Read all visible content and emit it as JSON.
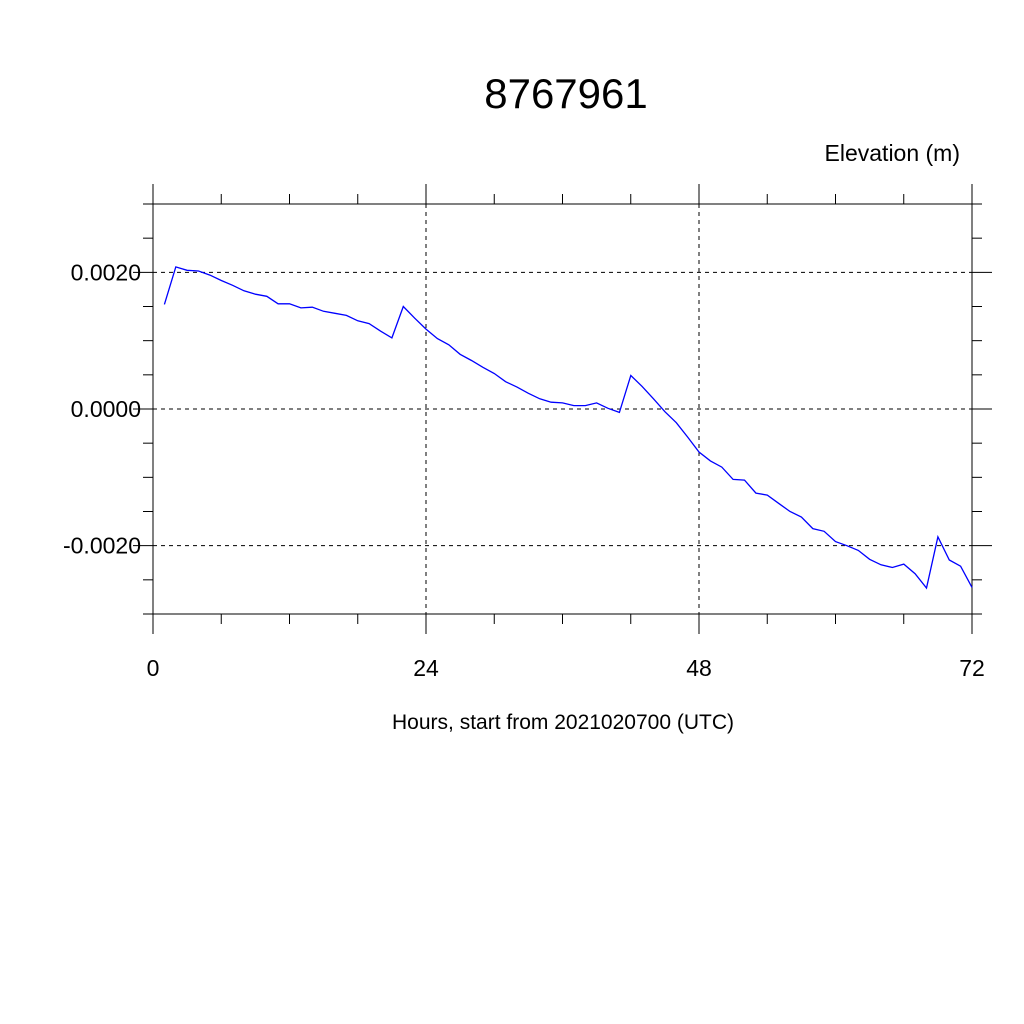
{
  "chart_data": {
    "type": "line",
    "title": "8767961",
    "ylabel_right_top": "Elevation (m)",
    "xlabel": "Hours, start from 2021020700 (UTC)",
    "xlim": [
      0,
      72
    ],
    "ylim": [
      -0.003,
      0.003
    ],
    "x_ticks": [
      0,
      24,
      48,
      72
    ],
    "x_tick_labels": [
      "0",
      "24",
      "48",
      "72"
    ],
    "y_ticks": [
      -0.002,
      0.0,
      0.002
    ],
    "y_tick_labels": [
      "-0.0020",
      "0.0000",
      "0.0020"
    ],
    "grid": "dashed at major ticks",
    "line_color": "#0000ff",
    "series": [
      {
        "x": [
          1,
          2,
          3,
          4,
          5,
          6,
          7,
          8,
          9,
          10,
          11,
          12,
          13,
          14,
          15,
          16,
          17,
          18,
          19,
          20,
          21,
          22,
          23,
          24,
          25,
          26,
          27,
          28,
          29,
          30,
          31,
          32,
          33,
          34,
          35,
          36,
          37,
          38,
          39,
          40,
          41,
          42,
          43,
          44,
          45,
          46,
          47,
          48,
          49,
          50,
          51,
          52,
          53,
          54,
          55,
          56,
          57,
          58,
          59,
          60,
          61,
          62,
          63,
          64,
          65,
          66,
          67,
          68,
          69,
          70,
          71,
          72
        ],
        "values": [
          0.00153,
          0.00208,
          0.00203,
          0.00202,
          0.00196,
          0.00188,
          0.00181,
          0.00173,
          0.00168,
          0.00165,
          0.00154,
          0.00154,
          0.00148,
          0.00149,
          0.00143,
          0.0014,
          0.00137,
          0.00129,
          0.00125,
          0.00114,
          0.00104,
          0.0015,
          0.00133,
          0.00117,
          0.00103,
          0.00094,
          0.0008,
          0.00071,
          0.00061,
          0.00052,
          0.0004,
          0.00032,
          0.00023,
          0.00015,
          0.0001,
          9e-05,
          5e-05,
          5e-05,
          9e-05,
          1e-05,
          -5e-05,
          0.00049,
          0.00033,
          0.00015,
          -4e-05,
          -0.0002,
          -0.00041,
          -0.00063,
          -0.00076,
          -0.00085,
          -0.00103,
          -0.00104,
          -0.00123,
          -0.00126,
          -0.00138,
          -0.0015,
          -0.00158,
          -0.00175,
          -0.00179,
          -0.00194,
          -0.002,
          -0.00207,
          -0.0022,
          -0.00228,
          -0.00232,
          -0.00227,
          -0.00241,
          -0.00262,
          -0.00187,
          -0.00221,
          -0.0023,
          -0.00261
        ]
      }
    ]
  }
}
